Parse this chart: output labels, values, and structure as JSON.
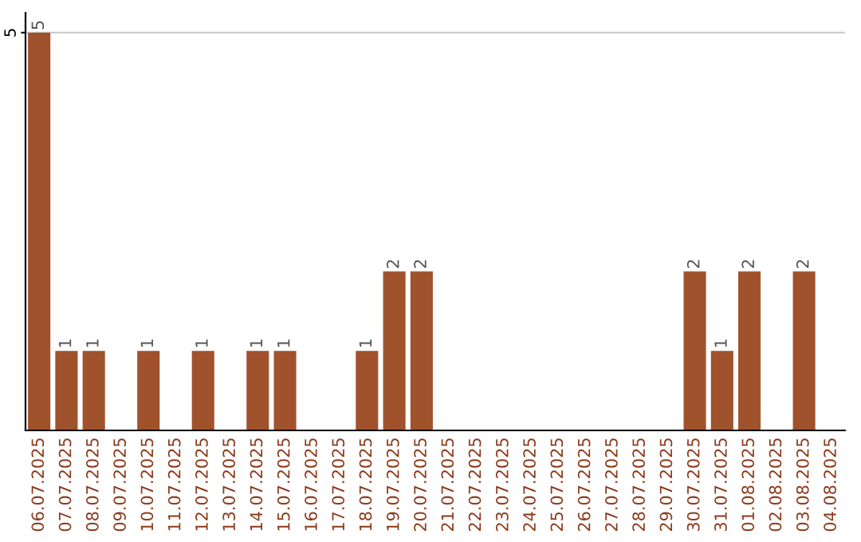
{
  "chart_data": {
    "type": "bar",
    "categories": [
      "06.07.2025",
      "07.07.2025",
      "08.07.2025",
      "09.07.2025",
      "10.07.2025",
      "11.07.2025",
      "12.07.2025",
      "13.07.2025",
      "14.07.2025",
      "15.07.2025",
      "16.07.2025",
      "17.07.2025",
      "18.07.2025",
      "19.07.2025",
      "20.07.2025",
      "21.07.2025",
      "22.07.2025",
      "23.07.2025",
      "24.07.2025",
      "25.07.2025",
      "26.07.2025",
      "27.07.2025",
      "28.07.2025",
      "29.07.2025",
      "30.07.2025",
      "31.07.2025",
      "01.08.2025",
      "02.08.2025",
      "03.08.2025",
      "04.08.2025"
    ],
    "values": [
      5,
      1,
      1,
      0,
      1,
      0,
      1,
      0,
      1,
      1,
      0,
      0,
      1,
      2,
      2,
      0,
      0,
      0,
      0,
      0,
      0,
      0,
      0,
      0,
      2,
      1,
      2,
      0,
      2,
      0
    ],
    "value_labels": [
      "5",
      "1",
      "1",
      null,
      "1",
      null,
      "1",
      null,
      "1",
      "1",
      null,
      null,
      "1",
      "2",
      "2",
      null,
      null,
      null,
      null,
      null,
      null,
      null,
      null,
      null,
      "2",
      "1",
      "2",
      null,
      "2",
      null
    ],
    "color": "#a0522d",
    "ylim": [
      0,
      5.25
    ],
    "yticks": [
      5
    ],
    "grid": "y"
  }
}
